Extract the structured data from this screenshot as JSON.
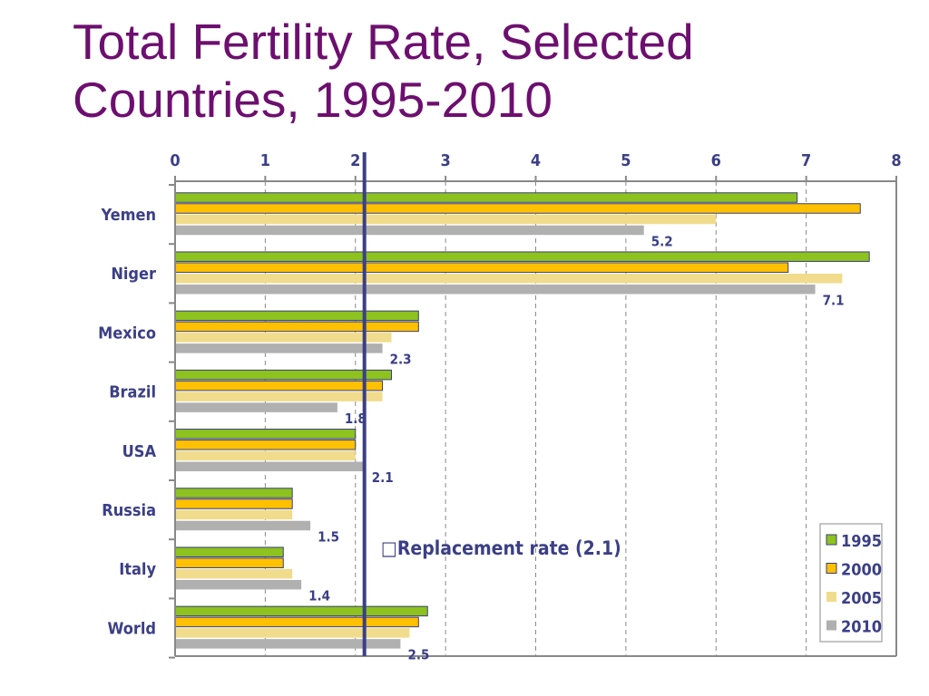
{
  "title": {
    "line1": "Total Fertility Rate, Selected",
    "line2": "Countries, 1995-2010"
  },
  "colors": {
    "title": "#6d0f6f",
    "labels": "#3b3f86",
    "axis": "#888888",
    "replacement_line": "#3b3f86",
    "series": [
      "#8dc21f",
      "#ffc000",
      "#f0dc8c",
      "#b0b0b0"
    ]
  },
  "chart_data": {
    "type": "bar",
    "orientation": "horizontal",
    "categories": [
      "Yemen",
      "Niger",
      "Mexico",
      "Brazil",
      "USA",
      "Russia",
      "Italy",
      "World"
    ],
    "series": [
      {
        "name": "1995",
        "values": [
          6.9,
          7.7,
          2.7,
          2.4,
          2.0,
          1.3,
          1.2,
          2.8
        ]
      },
      {
        "name": "2000",
        "values": [
          7.6,
          6.8,
          2.7,
          2.3,
          2.0,
          1.3,
          1.2,
          2.7
        ]
      },
      {
        "name": "2005",
        "values": [
          6.0,
          7.4,
          2.4,
          2.3,
          2.0,
          1.3,
          1.3,
          2.6
        ]
      },
      {
        "name": "2010",
        "values": [
          5.2,
          7.1,
          2.3,
          1.8,
          2.1,
          1.5,
          1.4,
          2.5
        ]
      }
    ],
    "data_labels": [
      "5.2",
      "7.1",
      "2.3",
      "1.8",
      "2.1",
      "1.5",
      "1.4",
      "2.5"
    ],
    "x_ticks": [
      "0",
      "1",
      "2",
      "3",
      "4",
      "5",
      "6",
      "7",
      "8"
    ],
    "xlim": [
      0,
      8
    ],
    "x_axis_position": "top",
    "grid": "vertical dashed",
    "legend_position": "bottom-right",
    "reference_line": {
      "value": 2.1,
      "label": "Replacement rate (2.1)",
      "prefix_glyph": "□"
    }
  }
}
